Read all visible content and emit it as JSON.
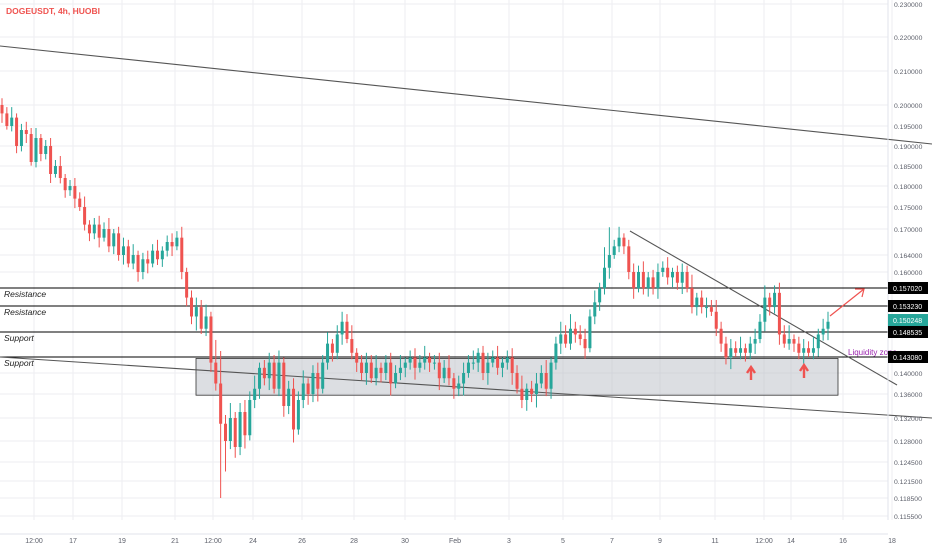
{
  "header": {
    "symbol_label": "DOGEUSDT, 4h, HUOBI"
  },
  "colors": {
    "bullish": "#26a69a",
    "bearish": "#ef5350",
    "trendline": "#555555",
    "level_line": "#000000",
    "zone_fill": "#b2b5be",
    "arrow_up": "#ef5350",
    "projection_arrow": "#ef5350",
    "liquidity_text": "#9c27b0",
    "grid": "#eeeef2",
    "axis_text": "#5d606b"
  },
  "chart_data": {
    "type": "candlestick",
    "ylim": [
      0.1125,
      0.234
    ],
    "y_ticks": [
      "0.230000",
      "0.220000",
      "0.210000",
      "0.200000",
      "0.195000",
      "0.190000",
      "0.185000",
      "0.180000",
      "0.175000",
      "0.170000",
      "0.164000",
      "0.160000",
      "0.157020",
      "0.153230",
      "0.150248",
      "0.148535",
      "0.143080",
      "0.140000",
      "0.136000",
      "0.132000",
      "0.128000",
      "0.124500",
      "0.121500",
      "0.118500",
      "0.115500"
    ],
    "x_ticks": [
      "12:00",
      "17",
      "19",
      "21",
      "12:00",
      "24",
      "26",
      "28",
      "30",
      "Feb",
      "3",
      "5",
      "7",
      "9",
      "11",
      "12:00",
      "14",
      "16",
      "18"
    ],
    "levels": [
      {
        "label": "Resistance",
        "price": 0.15702,
        "tag": "0.157020"
      },
      {
        "label": "Resistance",
        "price": 0.15323,
        "tag": "0.153230"
      },
      {
        "label": "Support",
        "price": 0.148535,
        "tag": "0.148535"
      },
      {
        "label": "Support",
        "price": 0.14308,
        "tag": "0.143080"
      }
    ],
    "current_price": {
      "value": 0.150248,
      "tag": "0.150248"
    },
    "liquidity_zone": {
      "label": "Liquidity zone",
      "top": 0.1428,
      "bottom": 0.1358
    },
    "annotations": [
      "up-arrow",
      "up-arrow",
      "projection-arrow"
    ],
    "closes": [
      0.198,
      0.195,
      0.197,
      0.19,
      0.194,
      0.193,
      0.186,
      0.192,
      0.188,
      0.19,
      0.183,
      0.185,
      0.182,
      0.179,
      0.18,
      0.177,
      0.175,
      0.171,
      0.169,
      0.171,
      0.168,
      0.17,
      0.166,
      0.169,
      0.164,
      0.166,
      0.162,
      0.164,
      0.16,
      0.163,
      0.162,
      0.165,
      0.163,
      0.165,
      0.167,
      0.166,
      0.168,
      0.16,
      0.155,
      0.151,
      0.153,
      0.149,
      0.151,
      0.142,
      0.138,
      0.131,
      0.128,
      0.132,
      0.127,
      0.133,
      0.129,
      0.135,
      0.137,
      0.141,
      0.139,
      0.142,
      0.137,
      0.142,
      0.134,
      0.137,
      0.13,
      0.135,
      0.138,
      0.136,
      0.14,
      0.137,
      0.142,
      0.146,
      0.144,
      0.148,
      0.15,
      0.147,
      0.144,
      0.142,
      0.14,
      0.142,
      0.139,
      0.141,
      0.14,
      0.142,
      0.138,
      0.14,
      0.141,
      0.142,
      0.143,
      0.141,
      0.142,
      0.143,
      0.142,
      0.142,
      0.139,
      0.141,
      0.139,
      0.137,
      0.138,
      0.14,
      0.142,
      0.142,
      0.144,
      0.14,
      0.142,
      0.143,
      0.141,
      0.142,
      0.143,
      0.14,
      0.137,
      0.135,
      0.137,
      0.136,
      0.138,
      0.14,
      0.137,
      0.142,
      0.146,
      0.148,
      0.146,
      0.149,
      0.148,
      0.147,
      0.145,
      0.151,
      0.154,
      0.157,
      0.161,
      0.164,
      0.166,
      0.168,
      0.166,
      0.16,
      0.157,
      0.16,
      0.157,
      0.159,
      0.157,
      0.16,
      0.161,
      0.159,
      0.16,
      0.158,
      0.16,
      0.157,
      0.153,
      0.155,
      0.153,
      0.153,
      0.152,
      0.149,
      0.146,
      0.143,
      0.145,
      0.144,
      0.145,
      0.144,
      0.146,
      0.147,
      0.15,
      0.155,
      0.153,
      0.156,
      0.148,
      0.146,
      0.147,
      0.146,
      0.144,
      0.145,
      0.144,
      0.145,
      0.148,
      0.149,
      0.15
    ]
  }
}
